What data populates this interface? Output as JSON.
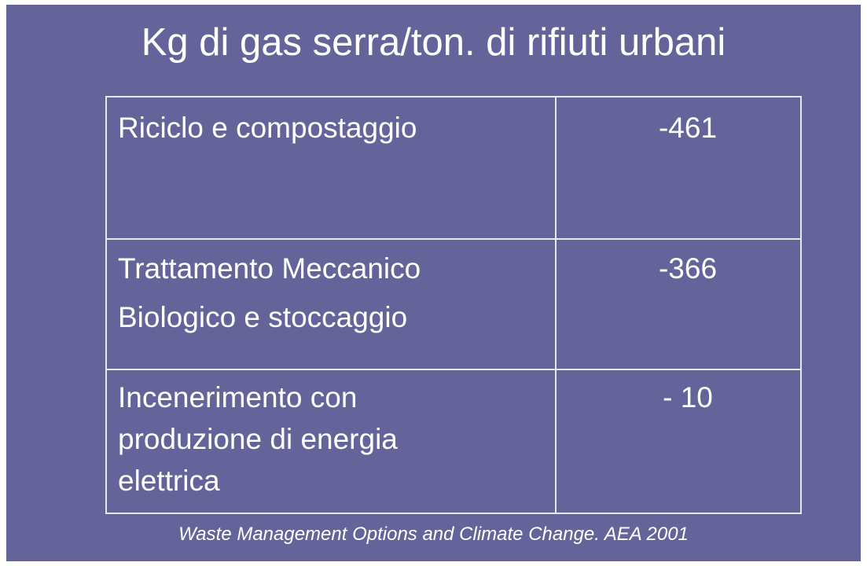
{
  "title": "Kg di gas serra/ton. di rifiuti urbani",
  "table": {
    "rows": [
      {
        "label": [
          "Riciclo e compostaggio"
        ],
        "value": "-461"
      },
      {
        "label": [
          "Trattamento Meccanico",
          "Biologico e stoccaggio"
        ],
        "value": "-366"
      },
      {
        "label": [
          "Incenerimento con",
          "produzione di energia",
          "elettrica"
        ],
        "value": "- 10"
      }
    ]
  },
  "source": "Waste Management Options and Climate Change. AEA 2001"
}
